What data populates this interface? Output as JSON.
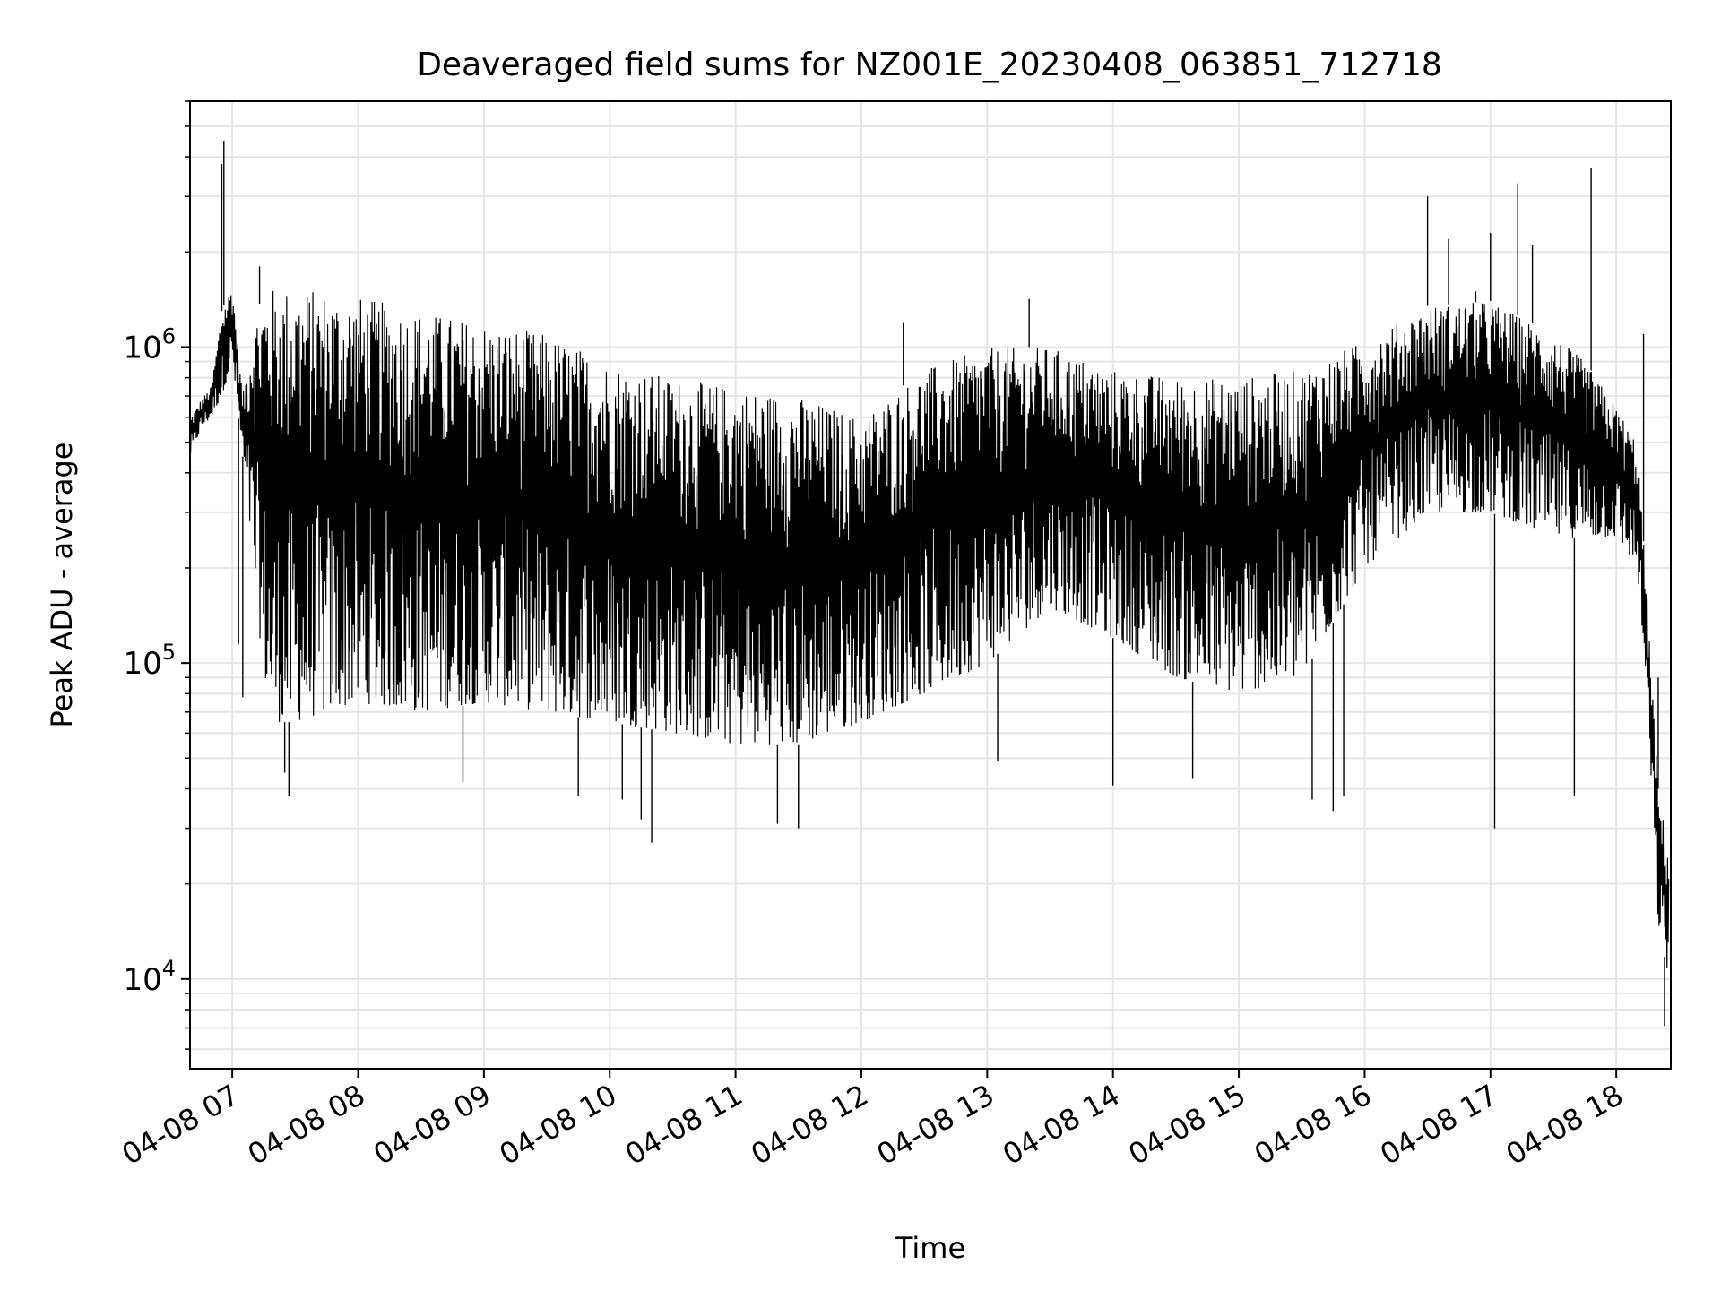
{
  "chart_data": {
    "type": "line",
    "title": "Deaveraged field sums for NZ001E_20230408_063851_712718",
    "xlabel": "Time",
    "ylabel": "Peak ADU - average",
    "y_scale": "log",
    "x_range": [
      "2023-04-08 06:39:51",
      "2023-04-08 18:26:00"
    ],
    "ylim": [
      5200,
      6000000
    ],
    "grid": true,
    "legend": "none",
    "line_color": "#000000",
    "x_ticks": [
      {
        "value": "2023-04-08 07:00",
        "label": "04-08 07"
      },
      {
        "value": "2023-04-08 08:00",
        "label": "04-08 08"
      },
      {
        "value": "2023-04-08 09:00",
        "label": "04-08 09"
      },
      {
        "value": "2023-04-08 10:00",
        "label": "04-08 10"
      },
      {
        "value": "2023-04-08 11:00",
        "label": "04-08 11"
      },
      {
        "value": "2023-04-08 12:00",
        "label": "04-08 12"
      },
      {
        "value": "2023-04-08 13:00",
        "label": "04-08 13"
      },
      {
        "value": "2023-04-08 14:00",
        "label": "04-08 14"
      },
      {
        "value": "2023-04-08 15:00",
        "label": "04-08 15"
      },
      {
        "value": "2023-04-08 16:00",
        "label": "04-08 16"
      },
      {
        "value": "2023-04-08 17:00",
        "label": "04-08 17"
      },
      {
        "value": "2023-04-08 18:00",
        "label": "04-08 18"
      }
    ],
    "y_ticks": [
      {
        "value": 10000,
        "base": "10",
        "exp": "4"
      },
      {
        "value": 100000,
        "base": "10",
        "exp": "5"
      },
      {
        "value": 1000000,
        "base": "10",
        "exp": "6"
      }
    ],
    "envelope": {
      "x": [
        "2023-04-08 06:40",
        "2023-04-08 06:45",
        "2023-04-08 06:50",
        "2023-04-08 06:55",
        "2023-04-08 07:00",
        "2023-04-08 07:05",
        "2023-04-08 07:10",
        "2023-04-08 07:15",
        "2023-04-08 07:20",
        "2023-04-08 07:30",
        "2023-04-08 07:45",
        "2023-04-08 08:00",
        "2023-04-08 08:30",
        "2023-04-08 09:00",
        "2023-04-08 09:30",
        "2023-04-08 10:00",
        "2023-04-08 10:30",
        "2023-04-08 11:00",
        "2023-04-08 11:30",
        "2023-04-08 12:00",
        "2023-04-08 12:30",
        "2023-04-08 13:00",
        "2023-04-08 13:30",
        "2023-04-08 14:00",
        "2023-04-08 14:30",
        "2023-04-08 15:00",
        "2023-04-08 15:30",
        "2023-04-08 16:00",
        "2023-04-08 16:30",
        "2023-04-08 17:00",
        "2023-04-08 17:30",
        "2023-04-08 17:45",
        "2023-04-08 18:00",
        "2023-04-08 18:10",
        "2023-04-08 18:15",
        "2023-04-08 18:20",
        "2023-04-08 18:25"
      ],
      "upper": [
        600000,
        680000,
        750000,
        1300000,
        1600000,
        700000,
        1200000,
        1500000,
        1550000,
        1550000,
        1500000,
        1450000,
        1300000,
        1200000,
        1100000,
        900000,
        800000,
        750000,
        700000,
        600000,
        850000,
        1000000,
        1000000,
        850000,
        800000,
        800000,
        850000,
        1050000,
        1350000,
        1400000,
        1100000,
        900000,
        650000,
        500000,
        150000,
        40000,
        25000
      ],
      "lower": [
        450000,
        550000,
        600000,
        700000,
        900000,
        450000,
        200000,
        90000,
        65000,
        65000,
        70000,
        75000,
        70000,
        75000,
        70000,
        65000,
        60000,
        55000,
        55000,
        65000,
        80000,
        100000,
        150000,
        120000,
        90000,
        80000,
        90000,
        200000,
        300000,
        300000,
        250000,
        250000,
        250000,
        200000,
        70000,
        15000,
        10000
      ]
    },
    "spikes": [
      {
        "x": "2023-04-08 06:55",
        "y": 3800000
      },
      {
        "x": "2023-04-08 06:56",
        "y": 4500000
      },
      {
        "x": "2023-04-08 07:03",
        "y": 115000
      },
      {
        "x": "2023-04-08 07:05",
        "y": 78000
      },
      {
        "x": "2023-04-08 07:13",
        "y": 1800000
      },
      {
        "x": "2023-04-08 07:25",
        "y": 45000
      },
      {
        "x": "2023-04-08 07:27",
        "y": 38000
      },
      {
        "x": "2023-04-08 08:50",
        "y": 42000
      },
      {
        "x": "2023-04-08 09:45",
        "y": 38000
      },
      {
        "x": "2023-04-08 10:06",
        "y": 37000
      },
      {
        "x": "2023-04-08 10:15",
        "y": 32000
      },
      {
        "x": "2023-04-08 10:20",
        "y": 27000
      },
      {
        "x": "2023-04-08 11:20",
        "y": 31000
      },
      {
        "x": "2023-04-08 11:30",
        "y": 30000
      },
      {
        "x": "2023-04-08 12:20",
        "y": 1200000
      },
      {
        "x": "2023-04-08 13:05",
        "y": 49000
      },
      {
        "x": "2023-04-08 13:20",
        "y": 1420000
      },
      {
        "x": "2023-04-08 14:00",
        "y": 41000
      },
      {
        "x": "2023-04-08 14:38",
        "y": 43000
      },
      {
        "x": "2023-04-08 15:35",
        "y": 37000
      },
      {
        "x": "2023-04-08 15:45",
        "y": 34000
      },
      {
        "x": "2023-04-08 15:50",
        "y": 38000
      },
      {
        "x": "2023-04-08 16:30",
        "y": 3000000
      },
      {
        "x": "2023-04-08 16:40",
        "y": 2200000
      },
      {
        "x": "2023-04-08 16:53",
        "y": 1500000
      },
      {
        "x": "2023-04-08 17:00",
        "y": 2300000
      },
      {
        "x": "2023-04-08 17:02",
        "y": 30000
      },
      {
        "x": "2023-04-08 17:13",
        "y": 3300000
      },
      {
        "x": "2023-04-08 17:20",
        "y": 2100000
      },
      {
        "x": "2023-04-08 17:40",
        "y": 38000
      },
      {
        "x": "2023-04-08 17:48",
        "y": 3700000
      },
      {
        "x": "2023-04-08 18:13",
        "y": 1100000
      },
      {
        "x": "2023-04-08 18:20",
        "y": 90000
      },
      {
        "x": "2023-04-08 18:23",
        "y": 7100
      }
    ]
  }
}
